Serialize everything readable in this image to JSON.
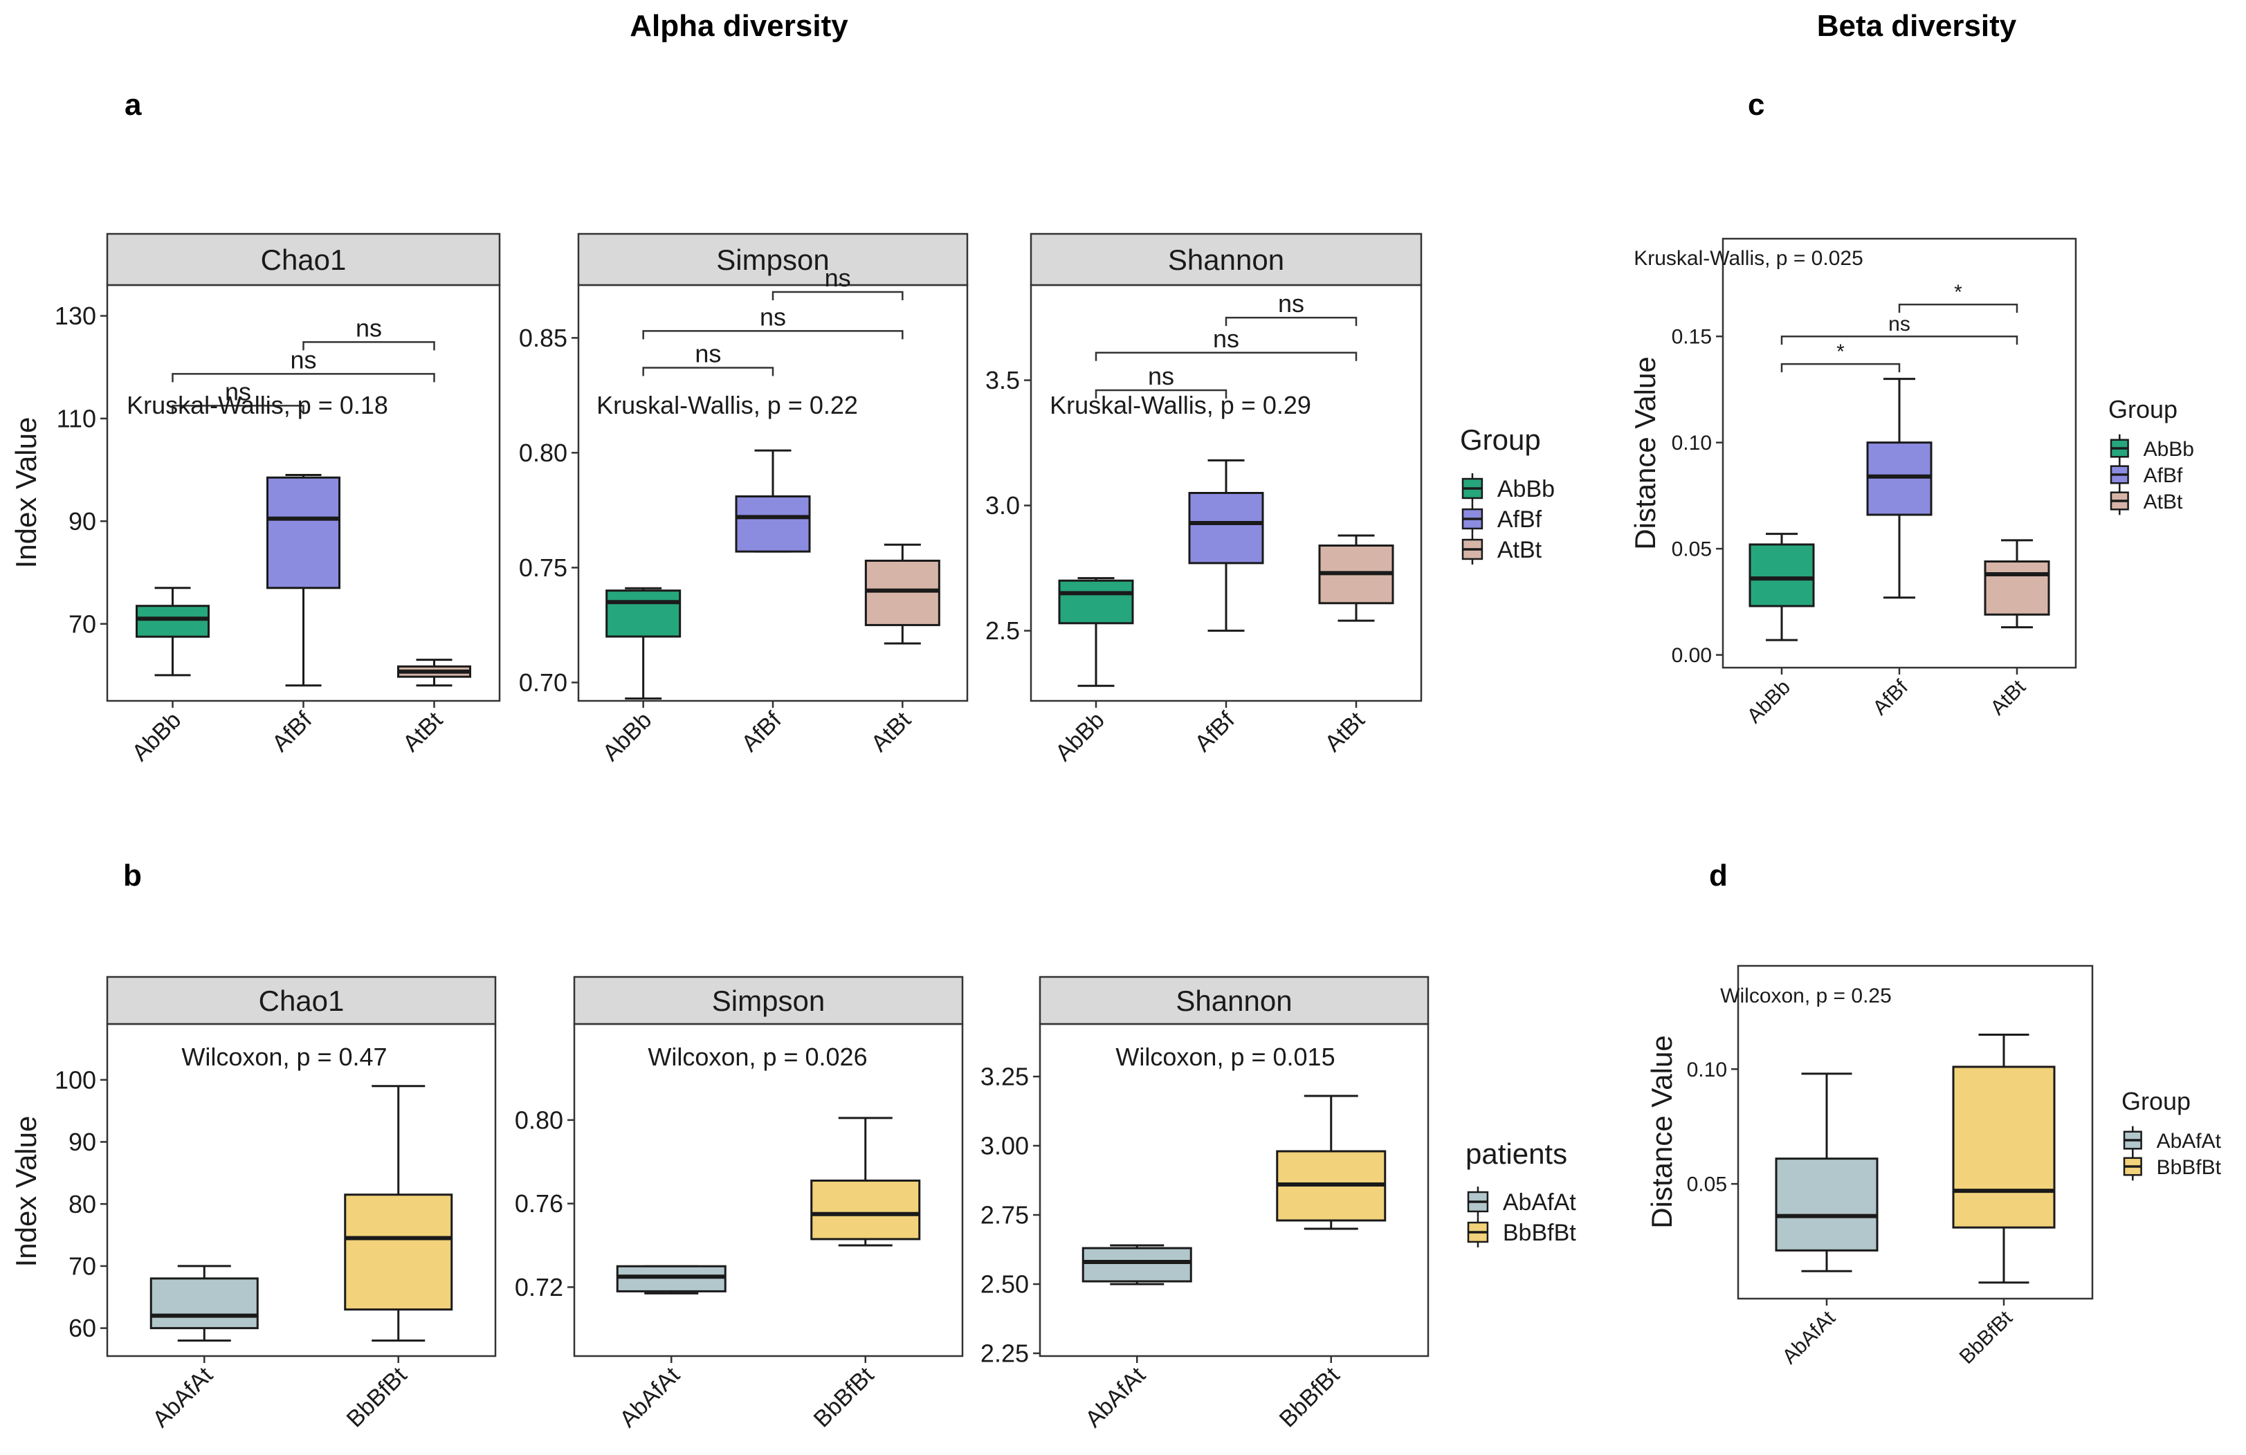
{
  "headings": {
    "alpha": "Alpha diversity",
    "beta": "Beta diversity",
    "panel_a": "a",
    "panel_b": "b",
    "panel_c": "c",
    "panel_d": "d"
  },
  "colors": {
    "AbBb": "#26a67c",
    "AfBf": "#8b8ce0",
    "AtBt": "#d6b5a8",
    "AbAfAt": "#b2c7cc",
    "BbBfBt": "#f2d27a",
    "strip": "#d9d9d9",
    "line": "#1a1a1a"
  },
  "chart_data": [
    {
      "id": "a-chao1",
      "type": "box",
      "strip": "Chao1",
      "ylabel": "Index Value",
      "ylim": [
        55,
        136
      ],
      "yticks": [
        70,
        90,
        110,
        130
      ],
      "categories": [
        "AbBb",
        "AfBf",
        "AtBt"
      ],
      "boxes": [
        {
          "cat": "AbBb",
          "min": 60,
          "q1": 67.5,
          "median": 71,
          "q3": 73.5,
          "max": 77
        },
        {
          "cat": "AfBf",
          "min": 58,
          "q1": 77,
          "median": 90.5,
          "q3": 98.5,
          "max": 99
        },
        {
          "cat": "AtBt",
          "min": 58,
          "q1": 59.7,
          "median": 60.7,
          "q3": 61.7,
          "max": 63
        }
      ],
      "stat": "Kruskal-Wallis, p = 0.18",
      "brackets": [
        {
          "from": 0,
          "to": 1,
          "label": "ns",
          "y": 112.5
        },
        {
          "from": 0,
          "to": 2,
          "label": "ns",
          "y": 118.7
        },
        {
          "from": 1,
          "to": 2,
          "label": "ns",
          "y": 124.9
        }
      ]
    },
    {
      "id": "a-simpson",
      "type": "box",
      "strip": "Simpson",
      "ylabel": "",
      "ylim": [
        0.692,
        0.873
      ],
      "yticks": [
        0.7,
        0.75,
        0.8,
        0.85
      ],
      "categories": [
        "AbBb",
        "AfBf",
        "AtBt"
      ],
      "boxes": [
        {
          "cat": "AbBb",
          "min": 0.693,
          "q1": 0.72,
          "median": 0.735,
          "q3": 0.74,
          "max": 0.741
        },
        {
          "cat": "AfBf",
          "min": 0.757,
          "q1": 0.757,
          "median": 0.772,
          "q3": 0.781,
          "max": 0.801
        },
        {
          "cat": "AtBt",
          "min": 0.717,
          "q1": 0.725,
          "median": 0.74,
          "q3": 0.753,
          "max": 0.76
        }
      ],
      "stat": "Kruskal-Wallis, p = 0.22",
      "brackets": [
        {
          "from": 0,
          "to": 1,
          "label": "ns",
          "y": 0.837
        },
        {
          "from": 0,
          "to": 2,
          "label": "ns",
          "y": 0.853
        },
        {
          "from": 1,
          "to": 2,
          "label": "ns",
          "y": 0.87
        }
      ]
    },
    {
      "id": "a-shannon",
      "type": "box",
      "strip": "Shannon",
      "ylabel": "",
      "ylim": [
        2.22,
        3.88
      ],
      "yticks": [
        2.5,
        3.0,
        3.5
      ],
      "categories": [
        "AbBb",
        "AfBf",
        "AtBt"
      ],
      "boxes": [
        {
          "cat": "AbBb",
          "min": 2.28,
          "q1": 2.53,
          "median": 2.65,
          "q3": 2.7,
          "max": 2.71
        },
        {
          "cat": "AfBf",
          "min": 2.5,
          "q1": 2.77,
          "median": 2.93,
          "q3": 3.05,
          "max": 3.18
        },
        {
          "cat": "AtBt",
          "min": 2.54,
          "q1": 2.61,
          "median": 2.73,
          "q3": 2.84,
          "max": 2.88
        }
      ],
      "stat": "Kruskal-Wallis, p = 0.29",
      "brackets": [
        {
          "from": 0,
          "to": 1,
          "label": "ns",
          "y": 3.46
        },
        {
          "from": 0,
          "to": 2,
          "label": "ns",
          "y": 3.61
        },
        {
          "from": 1,
          "to": 2,
          "label": "ns",
          "y": 3.75
        }
      ]
    },
    {
      "id": "b-chao1",
      "type": "box",
      "strip": "Chao1",
      "ylabel": "Index Value",
      "ylim": [
        55.5,
        109
      ],
      "yticks": [
        60,
        70,
        80,
        90,
        100
      ],
      "categories": [
        "AbAfAt",
        "BbBfBt"
      ],
      "boxes": [
        {
          "cat": "AbAfAt",
          "min": 58,
          "q1": 60,
          "median": 62,
          "q3": 68,
          "max": 70
        },
        {
          "cat": "BbBfBt",
          "min": 58,
          "q1": 63,
          "median": 74.5,
          "q3": 81.5,
          "max": 99
        }
      ],
      "stat": "Wilcoxon, p = 0.47",
      "brackets": []
    },
    {
      "id": "b-simpson",
      "type": "box",
      "strip": "Simpson",
      "ylabel": "",
      "ylim": [
        0.687,
        0.846
      ],
      "yticks": [
        0.72,
        0.76,
        0.8
      ],
      "categories": [
        "AbAfAt",
        "BbBfBt"
      ],
      "boxes": [
        {
          "cat": "AbAfAt",
          "min": 0.717,
          "q1": 0.718,
          "median": 0.725,
          "q3": 0.73,
          "max": 0.73
        },
        {
          "cat": "BbBfBt",
          "min": 0.74,
          "q1": 0.743,
          "median": 0.755,
          "q3": 0.771,
          "max": 0.801
        }
      ],
      "stat": "Wilcoxon, p = 0.026",
      "brackets": []
    },
    {
      "id": "b-shannon",
      "type": "box",
      "strip": "Shannon",
      "ylabel": "",
      "ylim": [
        2.24,
        3.44
      ],
      "yticks": [
        2.25,
        2.5,
        2.75,
        3.0,
        3.25
      ],
      "categories": [
        "AbAfAt",
        "BbBfBt"
      ],
      "boxes": [
        {
          "cat": "AbAfAt",
          "min": 2.5,
          "q1": 2.51,
          "median": 2.58,
          "q3": 2.63,
          "max": 2.64
        },
        {
          "cat": "BbBfBt",
          "min": 2.7,
          "q1": 2.73,
          "median": 2.86,
          "q3": 2.98,
          "max": 3.18
        }
      ],
      "stat": "Wilcoxon, p = 0.015",
      "brackets": []
    },
    {
      "id": "c-beta",
      "type": "box",
      "strip": "",
      "ylabel": "Distance Value",
      "ylim": [
        -0.006,
        0.196
      ],
      "yticks": [
        0.0,
        0.05,
        0.1,
        0.15
      ],
      "categories": [
        "AbBb",
        "AfBf",
        "AtBt"
      ],
      "boxes": [
        {
          "cat": "AbBb",
          "min": 0.007,
          "q1": 0.023,
          "median": 0.036,
          "q3": 0.052,
          "max": 0.057
        },
        {
          "cat": "AfBf",
          "min": 0.027,
          "q1": 0.066,
          "median": 0.084,
          "q3": 0.1,
          "max": 0.13
        },
        {
          "cat": "AtBt",
          "min": 0.013,
          "q1": 0.019,
          "median": 0.038,
          "q3": 0.044,
          "max": 0.054
        }
      ],
      "stat": "Kruskal-Wallis, p = 0.025",
      "brackets": [
        {
          "from": 0,
          "to": 1,
          "label": "*",
          "y": 0.137
        },
        {
          "from": 0,
          "to": 2,
          "label": "ns",
          "y": 0.15
        },
        {
          "from": 1,
          "to": 2,
          "label": "*",
          "y": 0.165
        }
      ]
    },
    {
      "id": "d-beta",
      "type": "box",
      "strip": "",
      "ylabel": "Distance Value",
      "ylim": [
        0.0,
        0.145
      ],
      "yticks": [
        0.05,
        0.1
      ],
      "categories": [
        "AbAfAt",
        "BbBfBt"
      ],
      "boxes": [
        {
          "cat": "AbAfAt",
          "min": 0.012,
          "q1": 0.021,
          "median": 0.036,
          "q3": 0.061,
          "max": 0.098
        },
        {
          "cat": "BbBfBt",
          "min": 0.007,
          "q1": 0.031,
          "median": 0.047,
          "q3": 0.101,
          "max": 0.115
        }
      ],
      "stat": "Wilcoxon, p = 0.25",
      "brackets": []
    }
  ],
  "legends": {
    "a": {
      "title": "Group",
      "items": [
        "AbBb",
        "AfBf",
        "AtBt"
      ]
    },
    "b": {
      "title": "patients",
      "items": [
        "AbAfAt",
        "BbBfBt"
      ]
    },
    "c": {
      "title": "Group",
      "items": [
        "AbBb",
        "AfBf",
        "AtBt"
      ]
    },
    "d": {
      "title": "Group",
      "items": [
        "AbAfAt",
        "BbBfBt"
      ]
    }
  }
}
